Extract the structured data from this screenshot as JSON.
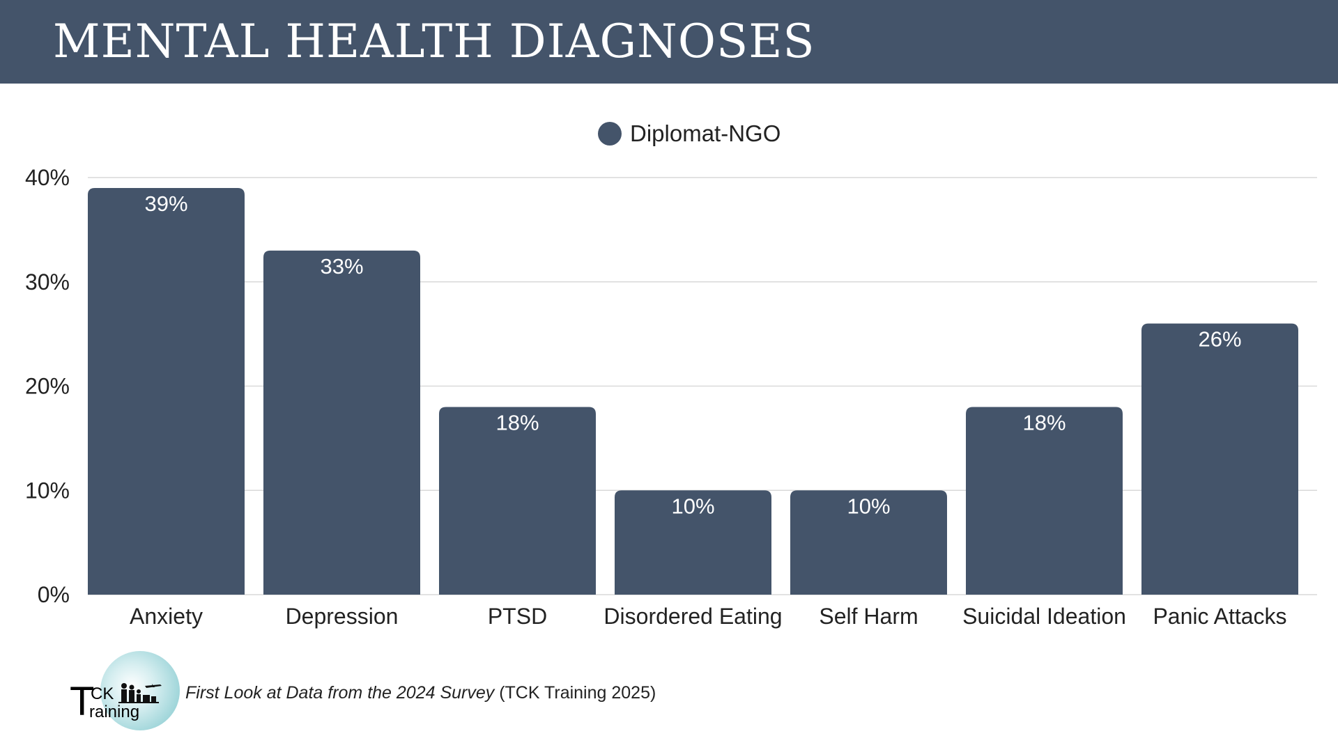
{
  "header": {
    "title": "MENTAL HEALTH DIAGNOSES"
  },
  "colors": {
    "header_bg": "#44546a",
    "bar": "#44546a",
    "bar_label": "#ffffff",
    "grid": "#d9d9d9",
    "axis_text": "#222222"
  },
  "chart_data": {
    "type": "bar",
    "categories": [
      "Anxiety",
      "Depression",
      "PTSD",
      "Disordered Eating",
      "Self Harm",
      "Suicidal Ideation",
      "Panic Attacks"
    ],
    "series": [
      {
        "name": "Diplomat-NGO",
        "values": [
          39,
          33,
          18,
          10,
          10,
          18,
          26
        ],
        "labels": [
          "39%",
          "33%",
          "18%",
          "10%",
          "10%",
          "18%",
          "26%"
        ]
      }
    ],
    "ylim": [
      0,
      40
    ],
    "yticks": [
      0,
      10,
      20,
      30,
      40
    ],
    "ytick_labels": [
      "0%",
      "10%",
      "20%",
      "30%",
      "40%"
    ],
    "grid": true,
    "legend": "top-center"
  },
  "logo": {
    "letter_t": "T",
    "letters_ck": "CK",
    "letters_raining": "raining"
  },
  "source": {
    "italic": "First Look at Data from the 2024 Survey",
    "rest": " (TCK Training 2025)"
  }
}
